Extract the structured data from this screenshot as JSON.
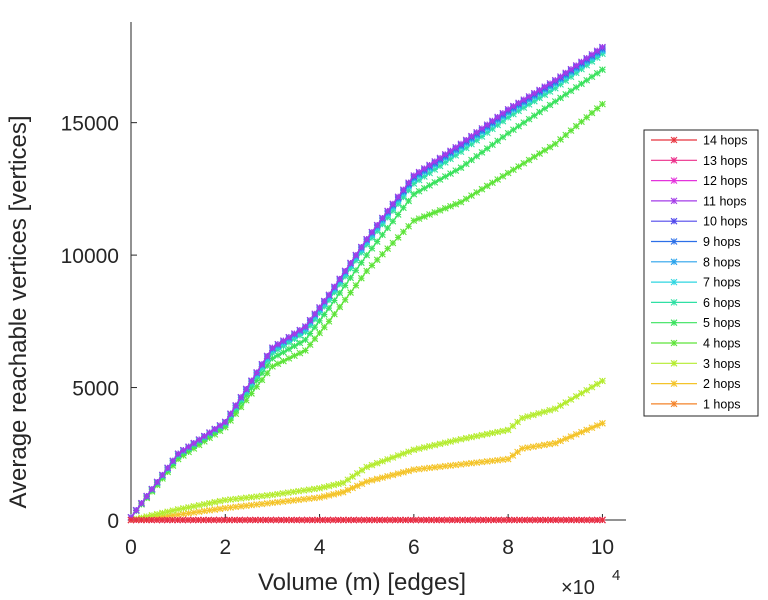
{
  "chart_data": {
    "type": "line",
    "title": "",
    "xlabel": "Volume (m) [edges]",
    "ylabel": "Average reachable vertices [vertices]",
    "x_exponent_label": "×10",
    "x_exponent_power": "4",
    "xlim": [
      0,
      10.5
    ],
    "ylim": [
      0,
      18800
    ],
    "x_ticks": [
      0,
      2,
      4,
      6,
      8,
      10
    ],
    "x_tick_labels": [
      "0",
      "2",
      "4",
      "6",
      "8",
      "10"
    ],
    "y_ticks": [
      0,
      5000,
      10000,
      15000
    ],
    "y_tick_labels": [
      "0",
      "5000",
      "10000",
      "15000"
    ],
    "legend_position": "outside-right",
    "series": [
      {
        "name": "14 hops",
        "color": "#e8333f",
        "points": [
          [
            0,
            0
          ],
          [
            10,
            0
          ]
        ]
      },
      {
        "name": "13 hops",
        "color": "#ec2f8a",
        "points": [
          [
            0,
            0
          ],
          [
            10,
            0
          ]
        ]
      },
      {
        "name": "12 hops",
        "color": "#e433dc",
        "points": [
          [
            0,
            0
          ],
          [
            10,
            0
          ]
        ]
      },
      {
        "name": "11 hops",
        "color": "#a43ce8",
        "points": [
          [
            0,
            100
          ],
          [
            1,
            2500
          ],
          [
            2,
            3700
          ],
          [
            3,
            6500
          ],
          [
            3.7,
            7300
          ],
          [
            4.2,
            8500
          ],
          [
            5,
            10600
          ],
          [
            6,
            13000
          ],
          [
            7,
            14200
          ],
          [
            8,
            15500
          ],
          [
            9,
            16600
          ],
          [
            10,
            17850
          ]
        ]
      },
      {
        "name": "10 hops",
        "color": "#5148ec",
        "points": [
          [
            0,
            100
          ],
          [
            1,
            2500
          ],
          [
            2,
            3700
          ],
          [
            3,
            6500
          ],
          [
            3.7,
            7300
          ],
          [
            4.2,
            8500
          ],
          [
            5,
            10600
          ],
          [
            6,
            13000
          ],
          [
            7,
            14200
          ],
          [
            8,
            15500
          ],
          [
            9,
            16600
          ],
          [
            10,
            17850
          ]
        ]
      },
      {
        "name": "9 hops",
        "color": "#2c6fe8",
        "points": [
          [
            0,
            100
          ],
          [
            1,
            2500
          ],
          [
            2,
            3700
          ],
          [
            3,
            6500
          ],
          [
            3.7,
            7300
          ],
          [
            4.2,
            8500
          ],
          [
            5,
            10600
          ],
          [
            6,
            12950
          ],
          [
            7,
            14150
          ],
          [
            8,
            15450
          ],
          [
            9,
            16550
          ],
          [
            10,
            17800
          ]
        ]
      },
      {
        "name": "8 hops",
        "color": "#2ba3ec",
        "points": [
          [
            0,
            100
          ],
          [
            1,
            2500
          ],
          [
            2,
            3700
          ],
          [
            3,
            6450
          ],
          [
            3.7,
            7250
          ],
          [
            4.2,
            8450
          ],
          [
            5,
            10550
          ],
          [
            6,
            12900
          ],
          [
            7,
            14100
          ],
          [
            8,
            15400
          ],
          [
            9,
            16500
          ],
          [
            10,
            17750
          ]
        ]
      },
      {
        "name": "7 hops",
        "color": "#2fd6e0",
        "points": [
          [
            0,
            100
          ],
          [
            1,
            2480
          ],
          [
            2,
            3680
          ],
          [
            3,
            6400
          ],
          [
            3.7,
            7200
          ],
          [
            4.2,
            8400
          ],
          [
            5,
            10500
          ],
          [
            6,
            12850
          ],
          [
            7,
            14050
          ],
          [
            8,
            15350
          ],
          [
            9,
            16450
          ],
          [
            10,
            17700
          ]
        ]
      },
      {
        "name": "6 hops",
        "color": "#2fe0a4",
        "points": [
          [
            0,
            100
          ],
          [
            1,
            2450
          ],
          [
            2,
            3650
          ],
          [
            3,
            6300
          ],
          [
            3.7,
            7100
          ],
          [
            4.2,
            8300
          ],
          [
            5,
            10400
          ],
          [
            6,
            12700
          ],
          [
            7,
            13900
          ],
          [
            8,
            15200
          ],
          [
            9,
            16300
          ],
          [
            10,
            17600
          ]
        ]
      },
      {
        "name": "5 hops",
        "color": "#3ae25e",
        "points": [
          [
            0,
            100
          ],
          [
            1,
            2400
          ],
          [
            2,
            3600
          ],
          [
            3,
            6100
          ],
          [
            3.7,
            6800
          ],
          [
            4.2,
            8000
          ],
          [
            5,
            10000
          ],
          [
            6,
            12300
          ],
          [
            7,
            13300
          ],
          [
            8,
            14600
          ],
          [
            9,
            15800
          ],
          [
            10,
            17000
          ]
        ]
      },
      {
        "name": "4 hops",
        "color": "#5ee43a",
        "points": [
          [
            0,
            100
          ],
          [
            1,
            2300
          ],
          [
            2,
            3500
          ],
          [
            3,
            5800
          ],
          [
            3.7,
            6400
          ],
          [
            4.2,
            7500
          ],
          [
            5,
            9400
          ],
          [
            6,
            11300
          ],
          [
            7,
            12000
          ],
          [
            8,
            13100
          ],
          [
            9,
            14200
          ],
          [
            10,
            15700
          ]
        ]
      },
      {
        "name": "3 hops",
        "color": "#b5ec30",
        "points": [
          [
            0,
            0
          ],
          [
            1,
            400
          ],
          [
            2,
            750
          ],
          [
            3,
            950
          ],
          [
            4,
            1200
          ],
          [
            4.5,
            1400
          ],
          [
            5,
            2000
          ],
          [
            6,
            2650
          ],
          [
            7,
            3050
          ],
          [
            8,
            3400
          ],
          [
            8.3,
            3850
          ],
          [
            9,
            4200
          ],
          [
            10,
            5250
          ]
        ]
      },
      {
        "name": "2 hops",
        "color": "#f4c42a",
        "points": [
          [
            0,
            0
          ],
          [
            1,
            200
          ],
          [
            2,
            450
          ],
          [
            3,
            650
          ],
          [
            4,
            850
          ],
          [
            4.5,
            1050
          ],
          [
            5,
            1450
          ],
          [
            6,
            1900
          ],
          [
            7,
            2100
          ],
          [
            8,
            2300
          ],
          [
            8.3,
            2700
          ],
          [
            9,
            2900
          ],
          [
            10,
            3650
          ]
        ]
      },
      {
        "name": "1 hops",
        "color": "#f4832a",
        "points": [
          [
            0,
            0
          ],
          [
            10,
            0
          ]
        ]
      }
    ]
  }
}
